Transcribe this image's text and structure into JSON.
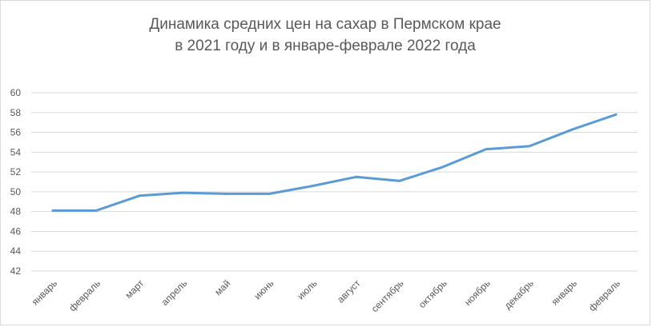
{
  "chart_data": {
    "type": "line",
    "title_line1": "Динамика средних цен на сахар в Пермском крае",
    "title_line2": "в 2021 году и в январе-феврале 2022 года",
    "categories": [
      "январь",
      "февраль",
      "март",
      "апрель",
      "май",
      "июнь",
      "июль",
      "август",
      "сентябрь",
      "октябрь",
      "ноябрь",
      "декабрь",
      "январь",
      "февраль"
    ],
    "series": [
      {
        "values": [
          48.1,
          48.1,
          49.6,
          49.9,
          49.8,
          49.8,
          50.6,
          51.5,
          51.1,
          52.5,
          54.3,
          54.6,
          56.3,
          57.8
        ]
      }
    ],
    "yticks": [
      42,
      44,
      46,
      48,
      50,
      52,
      54,
      56,
      58,
      60
    ],
    "ylim": [
      42,
      60
    ],
    "grid": true,
    "legend": "none",
    "line_color": "#5b9bd5",
    "grid_color": "#d9d9d9"
  }
}
